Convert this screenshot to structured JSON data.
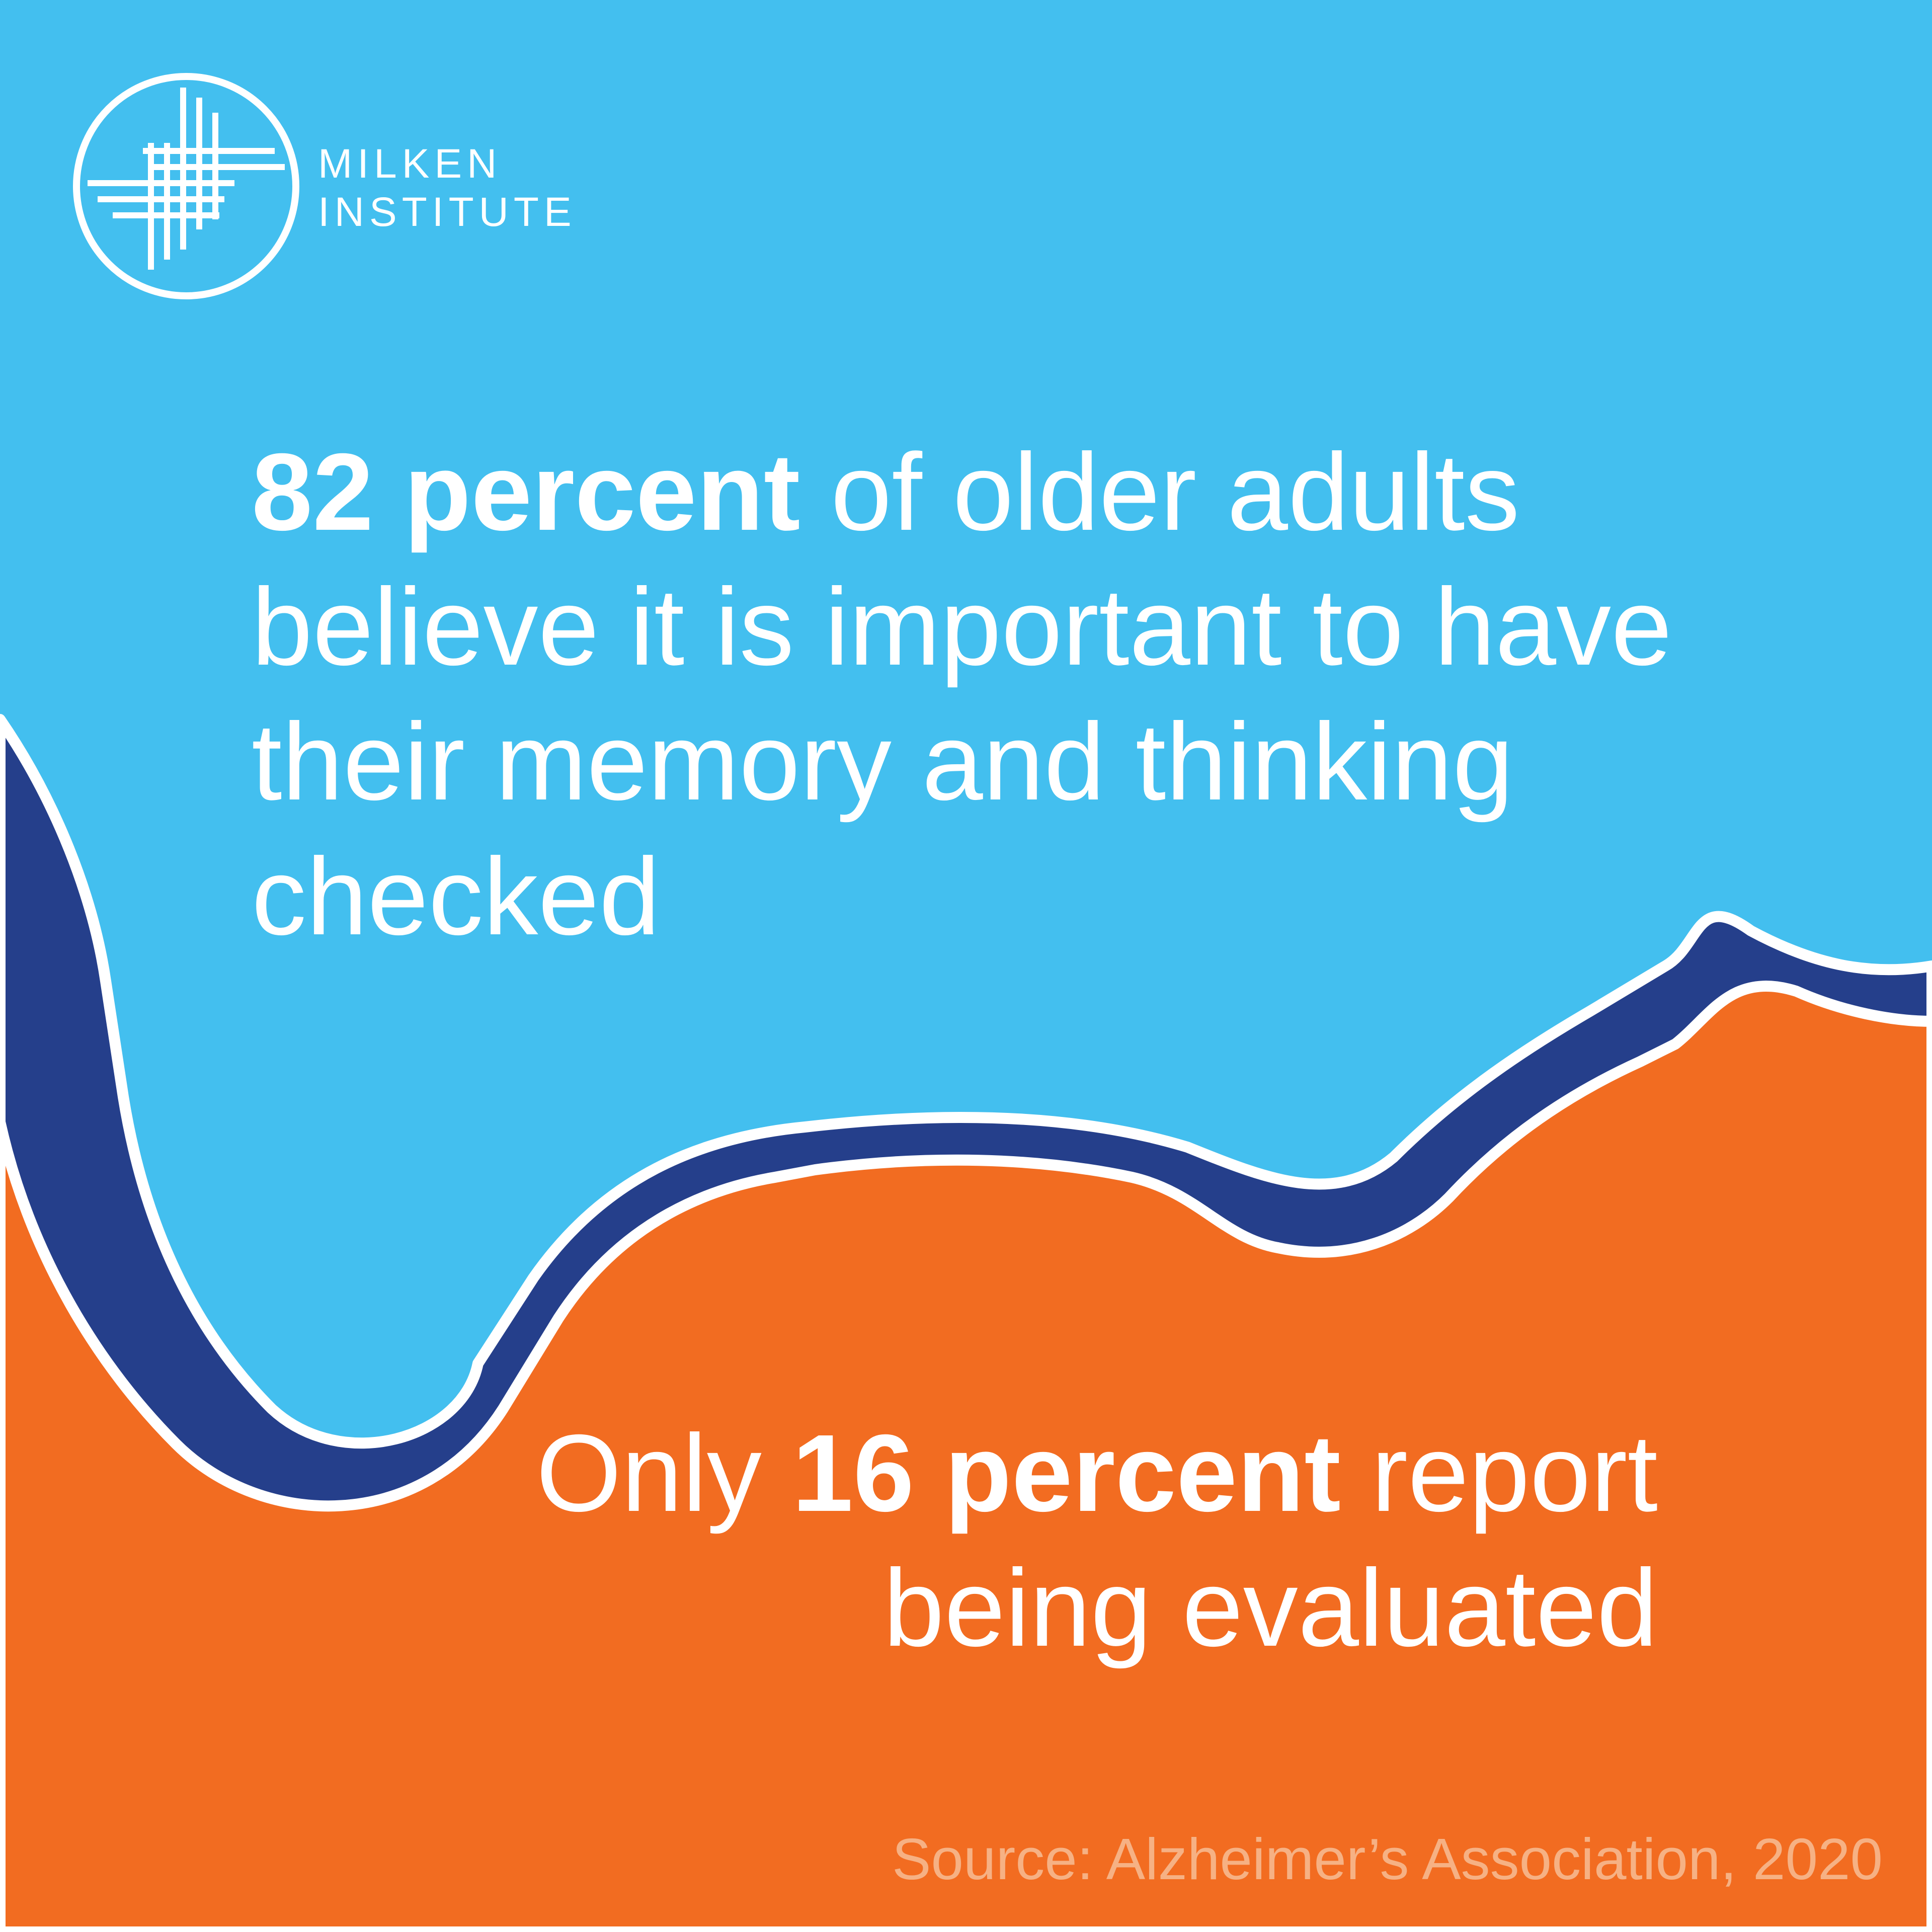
{
  "colors": {
    "sky": "#43bfef",
    "navy": "#253f8b",
    "orange": "#f26c21",
    "outline": "#ffffff",
    "source_text": "#f6b184"
  },
  "logo": {
    "icon": "milken-grid-circle-icon",
    "line1": "MILKEN",
    "line2": "INSTITUTE"
  },
  "stat_top": {
    "highlight": "82 percent",
    "rest": "of older adults believe it is important to have their memory and thinking checked"
  },
  "stat_bottom": {
    "prefix": "Only",
    "highlight": "16 percent",
    "rest": "report being evaluated"
  },
  "source": "Source: Alzheimer’s Association, 2020"
}
